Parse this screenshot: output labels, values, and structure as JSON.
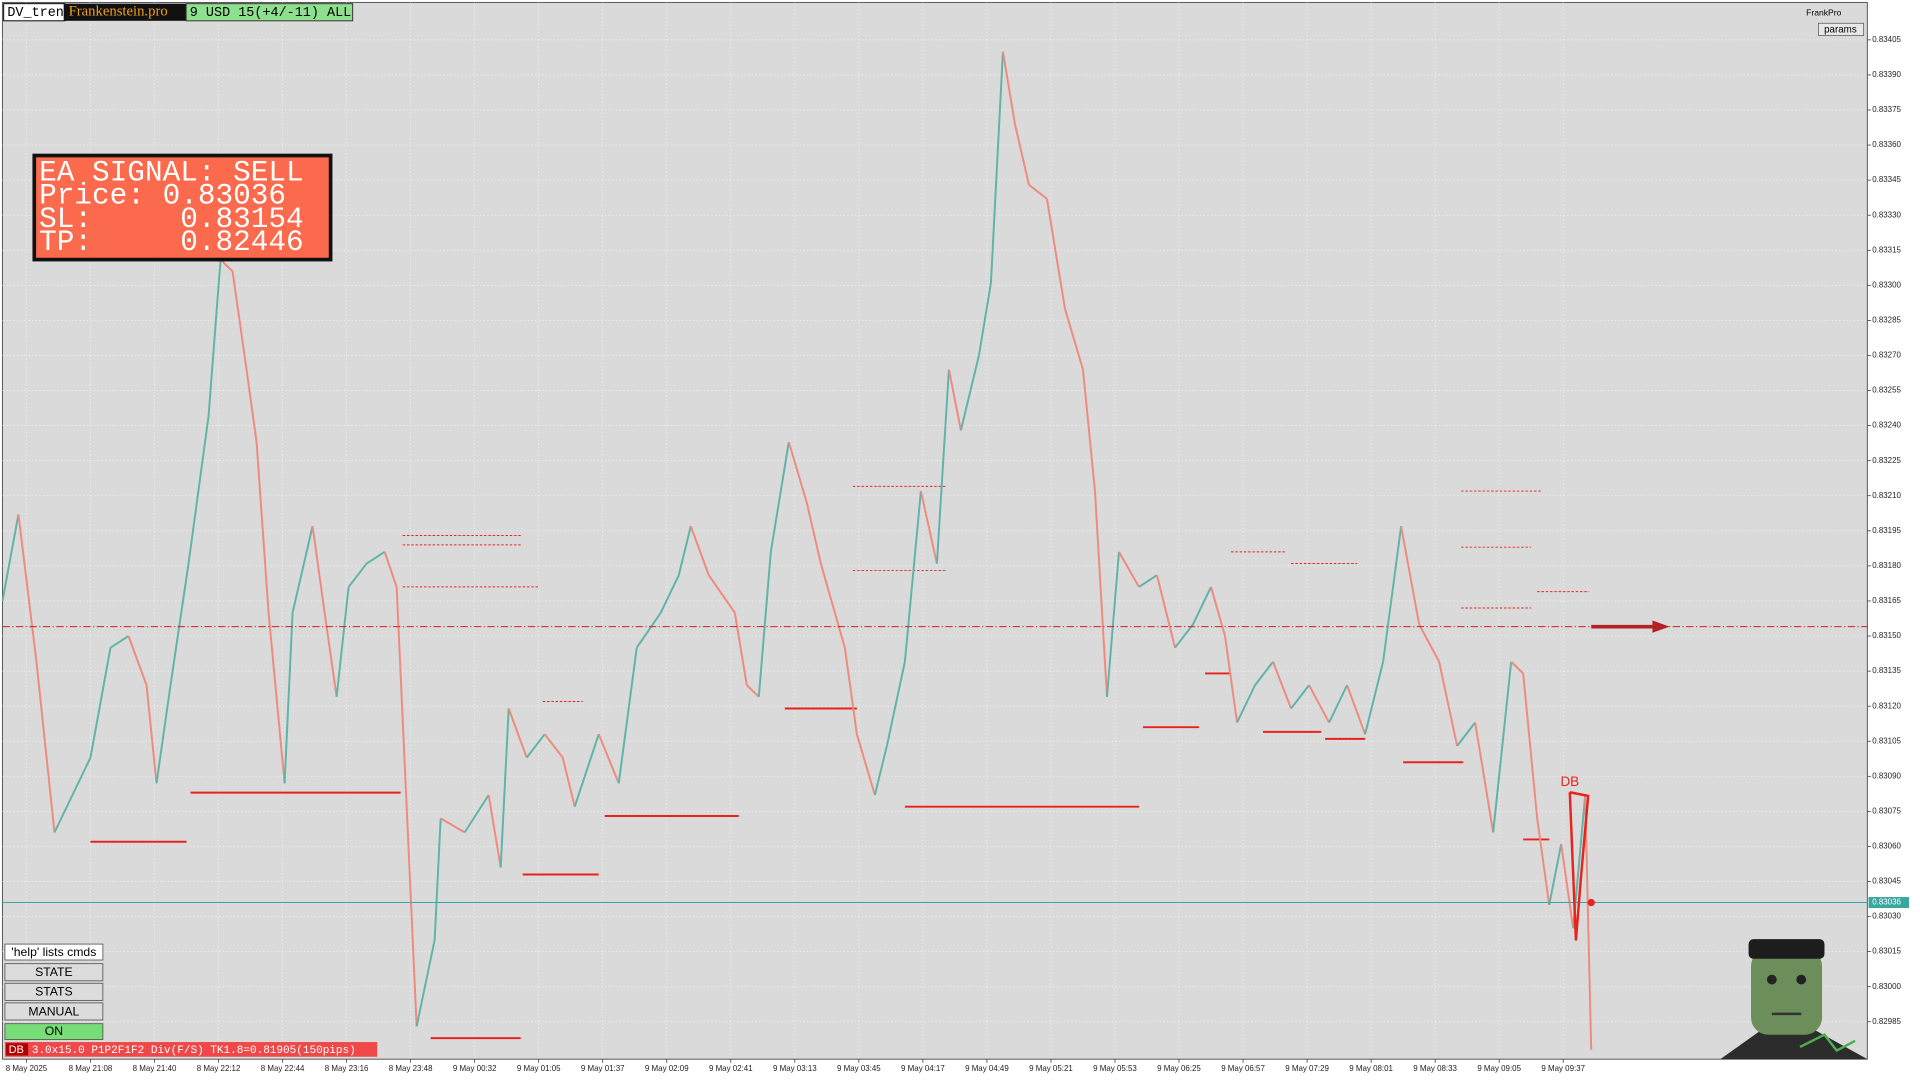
{
  "header": {
    "symbol": "DV_tren",
    "brand": "Frankenstein.pro",
    "account": "9 USD 15(+4/-11) ALL",
    "owner": "FrankPro",
    "params_button": "params"
  },
  "signal_box": {
    "lines": [
      "EA SIGNAL: SELL",
      "Price: 0.83036",
      "SL:     0.83154",
      "TP:     0.82446"
    ]
  },
  "buttons": [
    "'help' lists cmds",
    "STATE",
    "STATS",
    "MANUAL",
    "ON"
  ],
  "status": {
    "tag": "DB",
    "text": "3.0x15.0 P1P2F1F2 Div(F/S) TK1.8=0.81905(150pips)"
  },
  "pattern": {
    "label": "DB"
  },
  "chart_data": {
    "type": "line",
    "up_color": "#5fb3a8",
    "down_color": "#ee8a7e",
    "level_color": "#e8231c",
    "grid": true,
    "x": [
      -12,
      -4,
      5,
      14,
      23,
      32,
      42,
      51,
      60,
      65,
      72,
      81,
      91,
      97,
      103,
      109,
      115,
      121,
      129,
      133,
      143,
      149,
      155,
      161,
      170,
      179,
      185,
      195,
      204,
      207,
      219,
      231,
      237,
      241,
      250,
      259,
      268,
      274,
      286,
      296,
      305,
      317,
      326,
      332,
      341,
      354,
      360,
      366,
      372,
      381,
      390,
      397,
      409,
      415,
      424,
      430,
      439,
      447,
      455,
      461,
      467,
      476,
      482,
      488,
      494,
      501,
      510,
      519,
      528,
      534,
      540,
      546,
      556,
      565,
      574,
      583,
      592,
      599,
      605,
      614,
      623,
      632,
      641,
      651,
      660,
      669,
      678,
      687,
      696,
      706,
      715,
      724,
      733,
      742,
      748,
      755,
      761,
      767,
      773,
      779,
      782
    ],
    "values": [
      0.83165,
      0.83202,
      0.83139,
      0.83066,
      0.83082,
      0.83098,
      0.83145,
      0.8315,
      0.83129,
      0.83087,
      0.83129,
      0.83181,
      0.83244,
      0.83311,
      0.83306,
      0.8327,
      0.83233,
      0.8316,
      0.83087,
      0.8316,
      0.83197,
      0.8316,
      0.83124,
      0.83171,
      0.83181,
      0.83186,
      0.83171,
      0.82983,
      0.8302,
      0.83072,
      0.83066,
      0.83082,
      0.83051,
      0.83119,
      0.83098,
      0.83108,
      0.83098,
      0.83077,
      0.83108,
      0.83087,
      0.83145,
      0.8316,
      0.83176,
      0.83197,
      0.83176,
      0.8316,
      0.83129,
      0.83124,
      0.83186,
      0.83233,
      0.83207,
      0.83181,
      0.83145,
      0.83108,
      0.83082,
      0.83103,
      0.83139,
      0.83212,
      0.83181,
      0.83264,
      0.83238,
      0.8327,
      0.83301,
      0.834,
      0.83369,
      0.83343,
      0.83337,
      0.8329,
      0.83264,
      0.83212,
      0.83124,
      0.83186,
      0.83171,
      0.83176,
      0.83145,
      0.83155,
      0.83171,
      0.8315,
      0.83113,
      0.83129,
      0.83139,
      0.83119,
      0.83129,
      0.83113,
      0.83129,
      0.83108,
      0.83139,
      0.83197,
      0.83155,
      0.83139,
      0.83103,
      0.83113,
      0.83066,
      0.83139,
      0.83134,
      0.83072,
      0.83035,
      0.83061,
      0.83025,
      0.83082,
      0.82973
    ],
    "xlim": [
      -12,
      920
    ],
    "ylim": [
      0.82969,
      0.83421
    ],
    "xticks": [
      {
        "value": 0,
        "label": "8 May 2025"
      },
      {
        "value": 32,
        "label": "8 May 21:08"
      },
      {
        "value": 64,
        "label": "8 May 21:40"
      },
      {
        "value": 96,
        "label": "8 May 22:12"
      },
      {
        "value": 128,
        "label": "8 May 22:44"
      },
      {
        "value": 160,
        "label": "8 May 23:16"
      },
      {
        "value": 192,
        "label": "8 May 23:48"
      },
      {
        "value": 224,
        "label": "9 May 00:32"
      },
      {
        "value": 256,
        "label": "9 May 01:05"
      },
      {
        "value": 288,
        "label": "9 May 01:37"
      },
      {
        "value": 320,
        "label": "9 May 02:09"
      },
      {
        "value": 352,
        "label": "9 May 02:41"
      },
      {
        "value": 384,
        "label": "9 May 03:13"
      },
      {
        "value": 416,
        "label": "9 May 03:45"
      },
      {
        "value": 448,
        "label": "9 May 04:17"
      },
      {
        "value": 480,
        "label": "9 May 04:49"
      },
      {
        "value": 512,
        "label": "9 May 05:21"
      },
      {
        "value": 544,
        "label": "9 May 05:53"
      },
      {
        "value": 576,
        "label": "9 May 06:25"
      },
      {
        "value": 608,
        "label": "9 May 06:57"
      },
      {
        "value": 640,
        "label": "9 May 07:29"
      },
      {
        "value": 672,
        "label": "9 May 08:01"
      },
      {
        "value": 704,
        "label": "9 May 08:33"
      },
      {
        "value": 736,
        "label": "9 May 09:05"
      },
      {
        "value": 768,
        "label": "9 May 09:37"
      }
    ],
    "yticks": [
      0.82985,
      {
        "value": 0.83,
        "label": "0.83000"
      },
      0.83015,
      {
        "value": 0.8303,
        "label": "0.83030"
      },
      0.83045,
      {
        "value": 0.8306,
        "label": "0.83060"
      },
      0.83075,
      {
        "value": 0.8309,
        "label": "0.83090"
      },
      0.83105,
      {
        "value": 0.8312,
        "label": "0.83120"
      },
      0.83135,
      {
        "value": 0.8315,
        "label": "0.83150"
      },
      0.83165,
      {
        "value": 0.8318,
        "label": "0.83180"
      },
      0.83195,
      {
        "value": 0.8321,
        "label": "0.83210"
      },
      0.83225,
      {
        "value": 0.8324,
        "label": "0.83240"
      },
      0.83255,
      {
        "value": 0.8327,
        "label": "0.83270"
      },
      0.83285,
      {
        "value": 0.833,
        "label": "0.83300"
      },
      0.83315,
      {
        "value": 0.8333,
        "label": "0.83330"
      },
      0.83345,
      {
        "value": 0.8336,
        "label": "0.83360"
      },
      0.83375,
      {
        "value": 0.8339,
        "label": "0.83390"
      },
      0.83405
    ],
    "levels": [
      {
        "price": 0.83062,
        "from": 32,
        "to": 80
      },
      {
        "price": 0.83083,
        "from": 82,
        "to": 187
      },
      {
        "price": 0.82978,
        "from": 202,
        "to": 247
      },
      {
        "price": 0.83048,
        "from": 248,
        "to": 286
      },
      {
        "price": 0.83073,
        "from": 289,
        "to": 356
      },
      {
        "price": 0.83119,
        "from": 379,
        "to": 415
      },
      {
        "price": 0.83077,
        "from": 439,
        "to": 556
      },
      {
        "price": 0.83111,
        "from": 558,
        "to": 586
      },
      {
        "price": 0.83134,
        "from": 589,
        "to": 602
      },
      {
        "price": 0.83109,
        "from": 618,
        "to": 647
      },
      {
        "price": 0.83106,
        "from": 649,
        "to": 669
      },
      {
        "price": 0.83096,
        "from": 688,
        "to": 718
      },
      {
        "price": 0.83063,
        "from": 748,
        "to": 761
      }
    ],
    "dashed_levels": [
      {
        "price": 0.83193,
        "from": 188,
        "to": 247
      },
      {
        "price": 0.83189,
        "from": 188,
        "to": 247
      },
      {
        "price": 0.83171,
        "from": 188,
        "to": 256
      },
      {
        "price": 0.83122,
        "from": 258,
        "to": 278
      },
      {
        "price": 0.83214,
        "from": 413,
        "to": 460
      },
      {
        "price": 0.83178,
        "from": 413,
        "to": 460
      },
      {
        "price": 0.83186,
        "from": 602,
        "to": 629
      },
      {
        "price": 0.83181,
        "from": 632,
        "to": 665
      },
      {
        "price": 0.83212,
        "from": 717,
        "to": 757
      },
      {
        "price": 0.83188,
        "from": 717,
        "to": 752
      },
      {
        "price": 0.83162,
        "from": 717,
        "to": 752
      },
      {
        "price": 0.83169,
        "from": 755,
        "to": 781
      }
    ],
    "signal_line": 0.83154,
    "current_price": 0.83036
  }
}
